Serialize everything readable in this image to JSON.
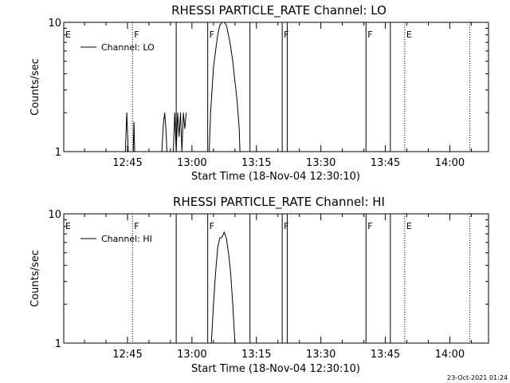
{
  "page": {
    "background": "#ffffff",
    "ink": "#000000"
  },
  "footer_date": "23-Oct-2021 01:24",
  "chart_data": [
    {
      "type": "line",
      "title": "RHESSI PARTICLE_RATE Channel: LO",
      "xlabel": "Start Time (18-Nov-04 12:30:10)",
      "ylabel": "Counts/sec",
      "xlim": [
        "12:30:10",
        "14:09:00"
      ],
      "ylim": [
        1,
        10
      ],
      "yscale": "log",
      "xticks": [
        "12:45",
        "13:00",
        "13:15",
        "13:30",
        "13:45",
        "14:00"
      ],
      "yticks": [
        "1",
        "10"
      ],
      "legend": {
        "position": "top-left",
        "label": "Channel: LO"
      },
      "markers": [
        {
          "label": "E",
          "time": "12:30:10",
          "style": "none"
        },
        {
          "label": "F",
          "time": "12:46:10",
          "style": "dotted"
        },
        {
          "label": "",
          "time": "12:56:20",
          "style": "solid"
        },
        {
          "label": "F",
          "time": "13:03:40",
          "style": "solid"
        },
        {
          "label": "",
          "time": "13:13:30",
          "style": "solid"
        },
        {
          "label": "F",
          "time": "13:21:00",
          "style": "solid"
        },
        {
          "label": "",
          "time": "13:22:10",
          "style": "solid"
        },
        {
          "label": "F",
          "time": "13:40:30",
          "style": "solid"
        },
        {
          "label": "",
          "time": "13:46:10",
          "style": "solid"
        },
        {
          "label": "E",
          "time": "13:49:30",
          "style": "dotted"
        },
        {
          "label": "",
          "time": "14:04:40",
          "style": "dotted"
        }
      ],
      "series": [
        {
          "segments": [
            {
              "x": [
                "12:44:30",
                "12:44:50",
                "12:45:10",
                "12:45:20"
              ],
              "y": [
                1,
                2,
                1,
                1
              ]
            },
            {
              "x": [
                "12:46:10",
                "12:46:20",
                "12:46:30",
                "12:46:40",
                "12:46:50"
              ],
              "y": [
                1,
                1,
                1.7,
                1,
                1
              ]
            },
            {
              "x": [
                "12:53:00",
                "12:53:20",
                "12:53:40",
                "12:54:00",
                "12:54:10",
                "12:54:20"
              ],
              "y": [
                1,
                1.6,
                2,
                1.4,
                1,
                1
              ]
            },
            {
              "x": [
                "12:55:40",
                "12:56:00",
                "12:56:20",
                "12:56:40",
                "12:57:00",
                "12:57:20",
                "12:57:40",
                "12:58:00",
                "12:58:20",
                "12:58:40"
              ],
              "y": [
                1,
                2,
                1,
                2,
                1.3,
                2,
                1,
                2,
                1.5,
                2
              ]
            },
            {
              "x": [
                "13:04:00",
                "13:04:20",
                "13:04:40",
                "13:05:00",
                "13:05:30",
                "13:06:00",
                "13:06:30",
                "13:07:00",
                "13:07:30",
                "13:08:00",
                "13:08:30",
                "13:09:00",
                "13:09:30",
                "13:10:00",
                "13:10:30",
                "13:11:00",
                "13:11:10"
              ],
              "y": [
                1,
                2,
                3,
                4.5,
                6,
                8,
                9.5,
                10,
                10,
                9.5,
                8,
                6.5,
                5,
                3.5,
                2.5,
                1.5,
                1
              ]
            }
          ]
        }
      ]
    },
    {
      "type": "line",
      "title": "RHESSI PARTICLE_RATE Channel: HI",
      "xlabel": "Start Time (18-Nov-04 12:30:10)",
      "ylabel": "Counts/sec",
      "xlim": [
        "12:30:10",
        "14:09:00"
      ],
      "ylim": [
        1,
        10
      ],
      "yscale": "log",
      "xticks": [
        "12:45",
        "13:00",
        "13:15",
        "13:30",
        "13:45",
        "14:00"
      ],
      "yticks": [
        "1",
        "10"
      ],
      "legend": {
        "position": "top-left",
        "label": "Channel: HI"
      },
      "markers": [
        {
          "label": "E",
          "time": "12:30:10",
          "style": "none"
        },
        {
          "label": "F",
          "time": "12:46:10",
          "style": "dotted"
        },
        {
          "label": "",
          "time": "12:56:20",
          "style": "solid"
        },
        {
          "label": "F",
          "time": "13:03:40",
          "style": "solid"
        },
        {
          "label": "",
          "time": "13:13:30",
          "style": "solid"
        },
        {
          "label": "F",
          "time": "13:21:00",
          "style": "solid"
        },
        {
          "label": "",
          "time": "13:22:10",
          "style": "solid"
        },
        {
          "label": "F",
          "time": "13:40:30",
          "style": "solid"
        },
        {
          "label": "",
          "time": "13:46:10",
          "style": "solid"
        },
        {
          "label": "E",
          "time": "13:49:30",
          "style": "dotted"
        },
        {
          "label": "",
          "time": "14:04:40",
          "style": "dotted"
        }
      ],
      "series": [
        {
          "segments": [
            {
              "x": [
                "13:04:30",
                "13:05:00",
                "13:05:30",
                "13:06:00",
                "13:06:30",
                "13:07:00",
                "13:07:30",
                "13:08:00",
                "13:08:30",
                "13:09:00",
                "13:09:30",
                "13:10:00"
              ],
              "y": [
                1,
                2,
                3.5,
                5.5,
                6.5,
                6.6,
                7.2,
                6.5,
                5,
                3.5,
                2,
                1
              ]
            }
          ]
        }
      ]
    }
  ]
}
